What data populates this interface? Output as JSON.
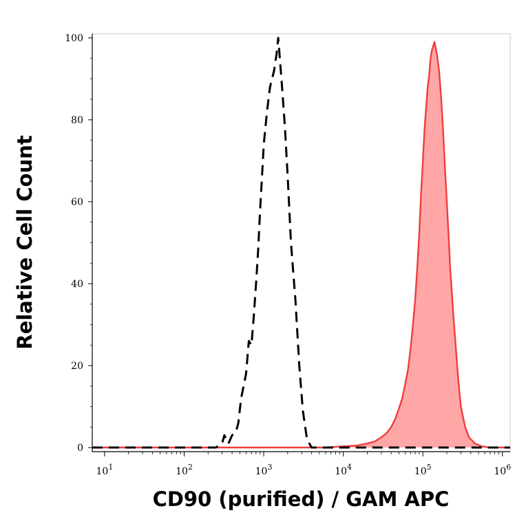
{
  "chart_data": {
    "type": "area",
    "xlabel": "CD90 (purified) / GAM APC",
    "ylabel": "Relative Cell Count",
    "x_scale": "log",
    "xlim": [
      7,
      1250000
    ],
    "ylim": [
      -1,
      101
    ],
    "x_ticks": [
      {
        "value": 10,
        "base": "10",
        "exp": "1"
      },
      {
        "value": 100,
        "base": "10",
        "exp": "2"
      },
      {
        "value": 1000,
        "base": "10",
        "exp": "3"
      },
      {
        "value": 10000,
        "base": "10",
        "exp": "4"
      },
      {
        "value": 100000,
        "base": "10",
        "exp": "5"
      },
      {
        "value": 1000000,
        "base": "10",
        "exp": "6"
      }
    ],
    "y_ticks": [
      {
        "value": 0,
        "label": "0"
      },
      {
        "value": 20,
        "label": "20"
      },
      {
        "value": 40,
        "label": "40"
      },
      {
        "value": 60,
        "label": "60"
      },
      {
        "value": 80,
        "label": "80"
      },
      {
        "value": 100,
        "label": "100"
      }
    ],
    "grid": false,
    "legend": "none",
    "series": [
      {
        "style": "dashed-line",
        "color": "#000000",
        "points": [
          [
            7,
            0
          ],
          [
            250,
            0
          ],
          [
            300,
            1
          ],
          [
            320,
            3
          ],
          [
            360,
            1
          ],
          [
            400,
            3
          ],
          [
            450,
            4
          ],
          [
            480,
            6
          ],
          [
            520,
            12
          ],
          [
            600,
            18
          ],
          [
            650,
            26
          ],
          [
            700,
            25
          ],
          [
            750,
            32
          ],
          [
            800,
            40
          ],
          [
            850,
            48
          ],
          [
            900,
            58
          ],
          [
            950,
            66
          ],
          [
            1000,
            74
          ],
          [
            1100,
            82
          ],
          [
            1200,
            88
          ],
          [
            1350,
            92
          ],
          [
            1450,
            96
          ],
          [
            1520,
            100
          ],
          [
            1580,
            96
          ],
          [
            1700,
            88
          ],
          [
            1850,
            78
          ],
          [
            2000,
            66
          ],
          [
            2200,
            50
          ],
          [
            2500,
            36
          ],
          [
            2800,
            20
          ],
          [
            3100,
            9
          ],
          [
            3500,
            2
          ],
          [
            4000,
            0
          ],
          [
            8000,
            0
          ],
          [
            1250000,
            0
          ]
        ]
      },
      {
        "style": "filled-area",
        "color": "#f03c3c",
        "fill": "#ffa7a7",
        "points": [
          [
            7,
            0
          ],
          [
            6000,
            0
          ],
          [
            10000,
            0.3
          ],
          [
            15000,
            0.5
          ],
          [
            20000,
            1
          ],
          [
            25000,
            1.5
          ],
          [
            30000,
            2.5
          ],
          [
            35000,
            3.5
          ],
          [
            40000,
            5
          ],
          [
            45000,
            7
          ],
          [
            50000,
            9.5
          ],
          [
            55000,
            12
          ],
          [
            60000,
            15.5
          ],
          [
            65000,
            19
          ],
          [
            70000,
            24
          ],
          [
            75000,
            30
          ],
          [
            80000,
            36
          ],
          [
            85000,
            44
          ],
          [
            90000,
            52
          ],
          [
            95000,
            62
          ],
          [
            100000,
            70
          ],
          [
            105000,
            78
          ],
          [
            110000,
            83
          ],
          [
            115000,
            88
          ],
          [
            120000,
            91
          ],
          [
            125000,
            95
          ],
          [
            130000,
            97
          ],
          [
            140000,
            99
          ],
          [
            150000,
            96
          ],
          [
            160000,
            92
          ],
          [
            170000,
            85
          ],
          [
            180000,
            77
          ],
          [
            190000,
            68
          ],
          [
            200000,
            60
          ],
          [
            210000,
            52
          ],
          [
            220000,
            44
          ],
          [
            240000,
            33
          ],
          [
            260000,
            24
          ],
          [
            280000,
            16
          ],
          [
            300000,
            10
          ],
          [
            340000,
            5
          ],
          [
            380000,
            2.5
          ],
          [
            450000,
            1
          ],
          [
            550000,
            0.3
          ],
          [
            700000,
            0
          ],
          [
            1250000,
            0
          ]
        ]
      }
    ]
  }
}
